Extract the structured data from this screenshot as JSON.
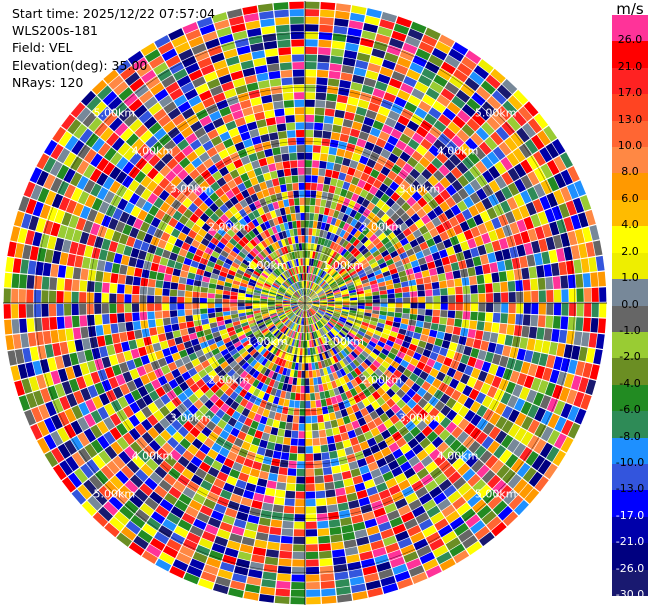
{
  "info": {
    "start_time": "Start time: 2025/12/22 07:57:04",
    "instrument": "WLS200s-181",
    "field": "Field: VEL",
    "elevation": "Elevation(deg): 35.00",
    "nrays": "NRays: 120"
  },
  "chart_data": {
    "type": "heatmap",
    "subtype": "polar-ppi",
    "nrays": 120,
    "ring_labels": [
      "1.00km",
      "2.00km",
      "3.00km",
      "4.00km",
      "5.00km"
    ],
    "colorbar": {
      "unit": "m/s",
      "ticks": [
        "26.0",
        "21.0",
        "17.0",
        "13.0",
        "10.0",
        "8.0",
        "6.0",
        "4.0",
        "2.0",
        "1.0",
        "0.0",
        "-1.0",
        "-2.0",
        "-4.0",
        "-6.0",
        "-8.0",
        "-10.0",
        "-13.0",
        "-17.0",
        "-21.0",
        "-26.0",
        "-30.0"
      ],
      "colors": [
        "#ff3399",
        "#ff0000",
        "#ff2222",
        "#ff4422",
        "#ff6633",
        "#ff8844",
        "#ff9900",
        "#ffbb00",
        "#ffff00",
        "#eeee00",
        "#778899",
        "#666666",
        "#99cc33",
        "#6b8e23",
        "#228b22",
        "#2e8b57",
        "#1e90ff",
        "#3355dd",
        "#0000ff",
        "#0000aa",
        "#000080",
        "#191970"
      ]
    }
  }
}
